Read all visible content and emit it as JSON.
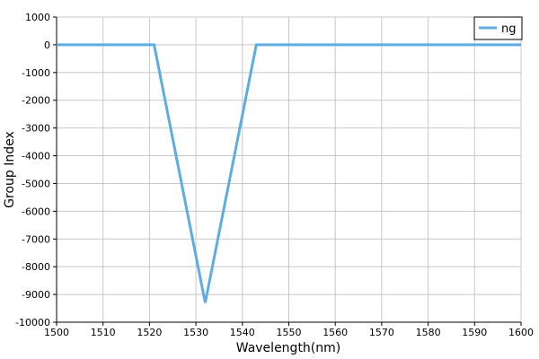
{
  "chart_data": {
    "type": "line",
    "xlabel": "Wavelength(nm)",
    "ylabel": "Group Index",
    "xlim": [
      1500,
      1600
    ],
    "ylim": [
      -10000,
      1000
    ],
    "xticks": [
      1500,
      1510,
      1520,
      1530,
      1540,
      1550,
      1560,
      1570,
      1580,
      1590,
      1600
    ],
    "yticks": [
      1000,
      0,
      -1000,
      -2000,
      -3000,
      -4000,
      -5000,
      -6000,
      -7000,
      -8000,
      -9000,
      -10000
    ],
    "grid": true,
    "legend_position": "top-right",
    "series": [
      {
        "name": "ng",
        "color": "#5dade2",
        "x": [
          1500,
          1521,
          1532,
          1543,
          1600
        ],
        "y": [
          0,
          0,
          -9300,
          0,
          0
        ]
      }
    ]
  }
}
